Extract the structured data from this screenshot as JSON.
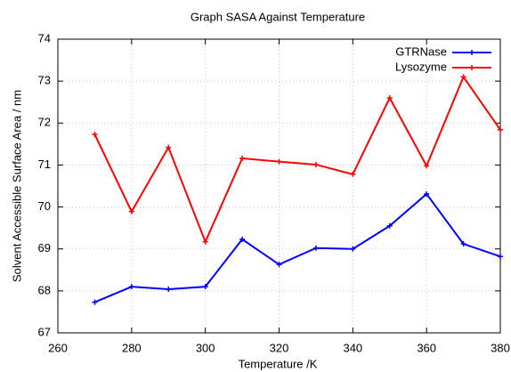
{
  "chart_data": {
    "type": "line",
    "title": "Graph SASA Against Temperature",
    "x_label": "Temperature /K",
    "y_label": "Solvent Accessible Surface Area / nm",
    "x": [
      270,
      280,
      290,
      300,
      310,
      320,
      330,
      340,
      350,
      360,
      370,
      380
    ],
    "series": [
      {
        "name": "GTRNase",
        "color": "#0000ff",
        "values": [
          67.73,
          68.1,
          68.04,
          68.1,
          69.23,
          68.63,
          69.02,
          69.0,
          69.55,
          70.31,
          69.12,
          68.82
        ]
      },
      {
        "name": "Lysozyme",
        "color": "#ff0000",
        "values": [
          71.73,
          69.89,
          71.42,
          69.17,
          71.16,
          71.08,
          71.01,
          70.78,
          72.6,
          70.98,
          73.1,
          71.84
        ]
      }
    ],
    "xlim": [
      260,
      380
    ],
    "xticks": [
      260,
      280,
      300,
      320,
      340,
      360,
      380
    ],
    "ylim": [
      67,
      74
    ],
    "yticks": [
      67,
      68,
      69,
      70,
      71,
      72,
      73,
      74
    ],
    "grid": true,
    "legend": "top-right"
  }
}
